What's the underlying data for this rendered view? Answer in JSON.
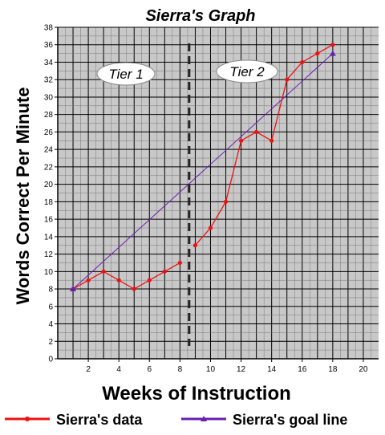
{
  "chart_data": {
    "type": "line",
    "title": "Sierra's Graph",
    "xlabel": "Weeks of Instruction",
    "ylabel": "Words Correct Per Minute",
    "xlim": [
      0,
      21
    ],
    "ylim": [
      0,
      38
    ],
    "x_ticks": [
      2,
      4,
      6,
      8,
      10,
      12,
      14,
      16,
      18,
      20
    ],
    "y_ticks": [
      0,
      2,
      4,
      6,
      8,
      10,
      12,
      14,
      16,
      18,
      20,
      22,
      24,
      26,
      28,
      30,
      32,
      34,
      36,
      38
    ],
    "grid": true,
    "phase_change_x": 8.6,
    "phases": [
      {
        "label": "Tier 1"
      },
      {
        "label": "Tier 2"
      }
    ],
    "series": [
      {
        "name": "Sierra's data",
        "color": "#ee1111",
        "segments": [
          {
            "x": [
              1,
              2,
              3,
              4,
              5,
              6,
              7,
              8
            ],
            "y": [
              8,
              9,
              10,
              9,
              8,
              9,
              10,
              11
            ]
          },
          {
            "x": [
              9,
              10,
              11,
              12,
              13,
              14,
              15,
              16,
              17,
              18
            ],
            "y": [
              13,
              15,
              18,
              25,
              26,
              25,
              32,
              34,
              35,
              36
            ]
          }
        ]
      },
      {
        "name": "Sierra's goal line",
        "color": "#6a1fb0",
        "segments": [
          {
            "x": [
              1,
              18
            ],
            "y": [
              8,
              35
            ]
          }
        ]
      }
    ],
    "legend_position": "bottom"
  }
}
